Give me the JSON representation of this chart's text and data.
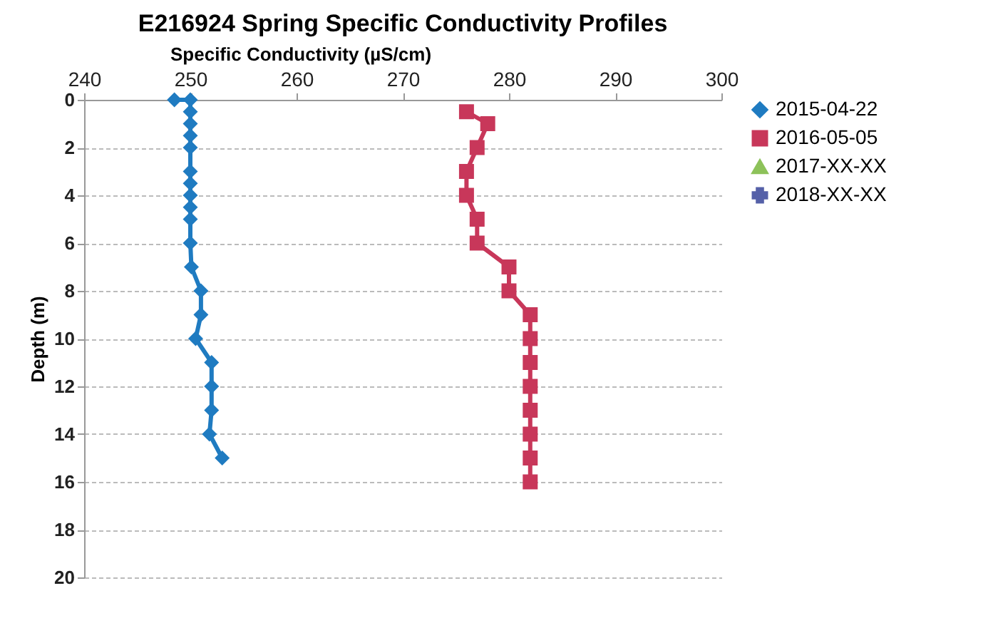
{
  "chart_data": {
    "type": "line",
    "title": "E216924 Spring Specific Conductivity Profiles",
    "xlabel": "Specific Conductivity (µS/cm)",
    "ylabel": "Depth (m)",
    "xlim": [
      240,
      300
    ],
    "xticks": [
      240,
      250,
      260,
      270,
      280,
      290,
      300
    ],
    "ylim": [
      20,
      0
    ],
    "yticks": [
      0,
      2,
      4,
      6,
      8,
      10,
      12,
      14,
      16,
      18,
      20
    ],
    "grid": "y",
    "legend": "right",
    "line_style": "solid",
    "series": [
      {
        "name": "2015-04-22",
        "color": "#1f7bc1",
        "marker": "diamond",
        "x": [
          248.5,
          250,
          250,
          250,
          250,
          250,
          250,
          250,
          250,
          250,
          250,
          250,
          250.1,
          251,
          251,
          250.5,
          252,
          252,
          252,
          251.8,
          253
        ],
        "values": [
          0,
          0,
          0.5,
          1,
          1.5,
          2,
          3,
          3.5,
          4,
          4.5,
          5,
          6,
          7,
          8,
          9,
          10,
          11,
          12,
          13,
          14,
          15
        ]
      },
      {
        "name": "2016-05-05",
        "color": "#c8375a",
        "marker": "square",
        "x": [
          276,
          278,
          277,
          276,
          276,
          277,
          277,
          280,
          280,
          282,
          282,
          282,
          282,
          282,
          282,
          282,
          282
        ],
        "values": [
          0.5,
          1,
          2,
          3,
          4,
          5,
          6,
          7,
          8,
          9,
          10,
          11,
          12,
          13,
          14,
          15,
          16
        ]
      },
      {
        "name": "2017-XX-XX",
        "color": "#8dc25a",
        "marker": "triangle"
      },
      {
        "name": "2018-XX-XX",
        "color": "#5560a8",
        "marker": "cross"
      }
    ]
  }
}
